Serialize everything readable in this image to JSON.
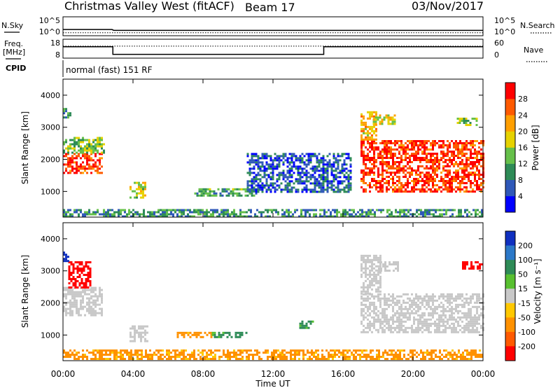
{
  "header": {
    "station": "Christmas Valley West (fitACF)",
    "beam": "Beam 17",
    "date": "03/Nov/2017"
  },
  "side_labels": {
    "nsky": "N.Sky",
    "nsearch": "N.Search",
    "freq_line1": "Freq.",
    "freq_line2": "[MHz]",
    "nave": "Nave",
    "cpid": "CPID"
  },
  "cpid_text": "normal (fast) 151 RF",
  "chart_data": [
    {
      "type": "line",
      "panel": "noise",
      "x_range_hours": [
        0,
        24
      ],
      "y_ticks_left": [
        "10^5",
        "10^0"
      ],
      "y_ticks_right": [
        "10^5",
        "10^0"
      ],
      "series": [
        {
          "name": "N.Sky",
          "x": [
            0,
            2.8,
            2.9,
            24
          ],
          "values_log10": [
            1.4,
            1.4,
            1.1,
            1.1
          ]
        },
        {
          "name": "N.Search",
          "x": [
            0,
            24
          ],
          "values_log10": [
            0.3,
            0.3
          ]
        }
      ]
    },
    {
      "type": "line",
      "panel": "frequency",
      "y_ticks_left": [
        "18",
        "8"
      ],
      "y_ticks_right": [
        "60",
        "0"
      ],
      "ylim_left": [
        8,
        18
      ],
      "ylim_right": [
        0,
        60
      ],
      "series": [
        {
          "name": "Freq.",
          "x": [
            0,
            2.85,
            2.85,
            14.9,
            14.9,
            24
          ],
          "values": [
            14.0,
            14.0,
            10.0,
            10.0,
            14.0,
            14.0
          ]
        },
        {
          "name": "Nave",
          "x": [
            0,
            24
          ],
          "values": [
            38,
            38
          ]
        }
      ]
    },
    {
      "type": "heatmap",
      "panel": "power",
      "ylabel": "Slant Range [km]",
      "ylim": [
        200,
        4500
      ],
      "y_ticks": [
        "1000",
        "2000",
        "3000",
        "4000"
      ],
      "colorbar_label": "Power [dB]",
      "colorbar_ticks": [
        "4",
        "8",
        "12",
        "16",
        "20",
        "24",
        "28"
      ],
      "colorbar_colors": [
        "#0000ff",
        "#2f58b8",
        "#2e8b57",
        "#66c04a",
        "#e6d200",
        "#ff9f00",
        "#ff5a00",
        "#ff0000"
      ],
      "regions": [
        {
          "t0": 0.0,
          "t1": 2.2,
          "r0": 1600,
          "r1": 2200,
          "level": 28
        },
        {
          "t0": 0.0,
          "t1": 2.4,
          "r0": 2200,
          "r1": 2700,
          "level": 14
        },
        {
          "t0": 0.0,
          "t1": 0.4,
          "r0": 3300,
          "r1": 3600,
          "level": 10
        },
        {
          "t0": 3.8,
          "t1": 4.7,
          "r0": 800,
          "r1": 1300,
          "level": 16
        },
        {
          "t0": 7.5,
          "t1": 11.0,
          "r0": 900,
          "r1": 1100,
          "level": 12
        },
        {
          "t0": 10.5,
          "t1": 16.5,
          "r0": 1000,
          "r1": 2200,
          "level": 6
        },
        {
          "t0": 17.0,
          "t1": 24.0,
          "r0": 1000,
          "r1": 2600,
          "level": 28
        },
        {
          "t0": 17.0,
          "t1": 17.9,
          "r0": 2600,
          "r1": 3500,
          "level": 20
        },
        {
          "t0": 17.7,
          "t1": 19.0,
          "r0": 3100,
          "r1": 3400,
          "level": 18
        },
        {
          "t0": 22.5,
          "t1": 23.7,
          "r0": 3100,
          "r1": 3300,
          "level": 14
        },
        {
          "t0": 0.0,
          "t1": 24.0,
          "r0": 250,
          "r1": 450,
          "level": 10
        }
      ]
    },
    {
      "type": "heatmap",
      "panel": "velocity",
      "ylabel": "Slant Range [km]",
      "ylim": [
        200,
        4500
      ],
      "y_ticks": [
        "1000",
        "2000",
        "3000",
        "4000"
      ],
      "xlabel": "Time UT",
      "x_ticks": [
        "00:00",
        "04:00",
        "08:00",
        "12:00",
        "16:00",
        "20:00",
        "00:00"
      ],
      "colorbar_label": "Velocity [m s⁻¹]",
      "colorbar_ticks": [
        "200",
        "100",
        "50",
        "15",
        "-15",
        "-50",
        "-100",
        "-200"
      ],
      "colorbar_colors": [
        "#1030c0",
        "#2b78c8",
        "#2e8b57",
        "#58c030",
        "#c8c8c8",
        "#ffc800",
        "#ff9100",
        "#ff5a00",
        "#ff0000"
      ],
      "regions": [
        {
          "t0": 0.0,
          "t1": 2.2,
          "r0": 1600,
          "r1": 2500,
          "level": 0
        },
        {
          "t0": 0.3,
          "t1": 1.6,
          "r0": 2500,
          "r1": 3300,
          "level": -180
        },
        {
          "t0": 0.0,
          "t1": 0.3,
          "r0": 3300,
          "r1": 3600,
          "level": 180
        },
        {
          "t0": 3.8,
          "t1": 4.8,
          "r0": 800,
          "r1": 1300,
          "level": 0
        },
        {
          "t0": 6.5,
          "t1": 8.5,
          "r0": 950,
          "r1": 1100,
          "level": -40
        },
        {
          "t0": 8.5,
          "t1": 10.5,
          "r0": 950,
          "r1": 1100,
          "level": 40
        },
        {
          "t0": 13.5,
          "t1": 14.3,
          "r0": 1200,
          "r1": 1450,
          "level": 40
        },
        {
          "t0": 17.0,
          "t1": 24.0,
          "r0": 1100,
          "r1": 2300,
          "level": 0
        },
        {
          "t0": 17.0,
          "t1": 18.2,
          "r0": 2300,
          "r1": 3500,
          "level": 0
        },
        {
          "t0": 18.0,
          "t1": 19.2,
          "r0": 3000,
          "r1": 3300,
          "level": 0
        },
        {
          "t0": 22.8,
          "t1": 24.0,
          "r0": 3100,
          "r1": 3300,
          "level": -180
        },
        {
          "t0": 0.0,
          "t1": 24.0,
          "r0": 250,
          "r1": 550,
          "level": -40
        }
      ]
    }
  ]
}
